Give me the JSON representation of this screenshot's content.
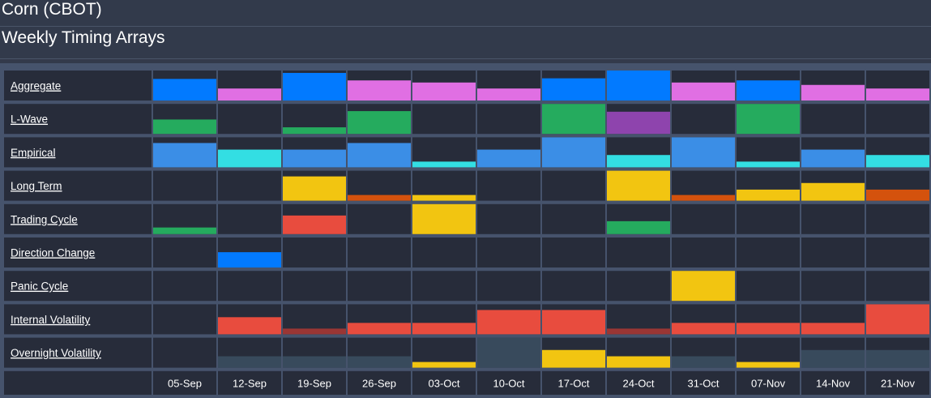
{
  "header": {
    "title": "Corn (CBOT)",
    "subtitle": "Weekly Timing Arrays"
  },
  "colors": {
    "background": "#272c3a",
    "grid_line": "#45526b",
    "blue": "#027aff",
    "pink": "#e06fe3",
    "green": "#25ab5e",
    "purple": "#8e44ad",
    "light_blue": "#3b8ee6",
    "cyan": "#33dee3",
    "yellow": "#f2c511",
    "orange": "#d4520d",
    "red": "#e84c3e",
    "dark_red": "#9a3634",
    "slate": "#384a5c"
  },
  "chart_data": {
    "type": "heatmap",
    "title": "Weekly Timing Arrays",
    "categories": [
      "05-Sep",
      "12-Sep",
      "19-Sep",
      "26-Sep",
      "03-Oct",
      "10-Oct",
      "17-Oct",
      "24-Oct",
      "31-Oct",
      "07-Nov",
      "14-Nov",
      "21-Nov"
    ],
    "value_scale": [
      0,
      1
    ],
    "rows": [
      {
        "label": "Aggregate",
        "values": [
          0.72,
          0.4,
          0.92,
          0.67,
          0.6,
          0.4,
          0.74,
          1.0,
          0.6,
          0.67,
          0.52,
          0.4
        ],
        "colors": [
          "blue",
          "pink",
          "blue",
          "pink",
          "pink",
          "pink",
          "blue",
          "blue",
          "pink",
          "blue",
          "pink",
          "pink"
        ]
      },
      {
        "label": "L-Wave",
        "values": [
          0.48,
          0,
          0.22,
          0.76,
          0,
          0,
          1.0,
          0.74,
          0,
          1.0,
          0,
          0
        ],
        "colors": [
          "green",
          null,
          "green",
          "green",
          null,
          null,
          "green",
          "purple",
          null,
          "green",
          null,
          null
        ]
      },
      {
        "label": "Empirical",
        "values": [
          0.81,
          0.59,
          0.59,
          0.81,
          0.19,
          0.59,
          1.0,
          0.41,
          1.0,
          0.19,
          0.59,
          0.41
        ],
        "colors": [
          "light_blue",
          "cyan",
          "light_blue",
          "light_blue",
          "cyan",
          "light_blue",
          "light_blue",
          "cyan",
          "light_blue",
          "cyan",
          "light_blue",
          "cyan"
        ]
      },
      {
        "label": "Long Term",
        "values": [
          0,
          0,
          0.81,
          0.19,
          0.19,
          0,
          0,
          1.0,
          0.19,
          0.37,
          0.59,
          0.37
        ],
        "colors": [
          null,
          null,
          "yellow",
          "orange",
          "yellow",
          null,
          null,
          "yellow",
          "orange",
          "yellow",
          "yellow",
          "orange"
        ]
      },
      {
        "label": "Trading Cycle",
        "values": [
          0.22,
          0,
          0.62,
          0,
          1.0,
          0,
          0,
          0.43,
          0,
          0,
          0,
          0
        ],
        "colors": [
          "green",
          null,
          "red",
          null,
          "yellow",
          null,
          null,
          "green",
          null,
          null,
          null,
          null
        ]
      },
      {
        "label": "Direction Change",
        "values": [
          0,
          0.51,
          0,
          0,
          0,
          0,
          0,
          0,
          0,
          0,
          0,
          0
        ],
        "colors": [
          null,
          "blue",
          null,
          null,
          null,
          null,
          null,
          null,
          null,
          null,
          null,
          null
        ]
      },
      {
        "label": "Panic Cycle",
        "values": [
          0,
          0,
          0,
          0,
          0,
          0,
          0,
          0,
          1.0,
          0,
          0,
          0
        ],
        "colors": [
          null,
          null,
          null,
          null,
          null,
          null,
          null,
          null,
          "yellow",
          null,
          null,
          null
        ]
      },
      {
        "label": "Internal Volatility",
        "values": [
          0,
          0.57,
          0.19,
          0.38,
          0.38,
          0.81,
          0.81,
          0.19,
          0.38,
          0.38,
          0.38,
          1.0
        ],
        "colors": [
          null,
          "red",
          "dark_red",
          "red",
          "red",
          "red",
          "red",
          "dark_red",
          "red",
          "red",
          "red",
          "red"
        ]
      },
      {
        "label": "Overnight Volatility",
        "values": [
          0,
          0.38,
          0.38,
          0.38,
          0.19,
          1.0,
          0.59,
          0.38,
          0.38,
          0.19,
          0.59,
          0.59
        ],
        "colors": [
          null,
          "slate",
          "slate",
          "slate",
          "yellow",
          "slate",
          "yellow",
          "yellow",
          "slate",
          "yellow",
          "slate",
          "slate"
        ]
      }
    ]
  }
}
